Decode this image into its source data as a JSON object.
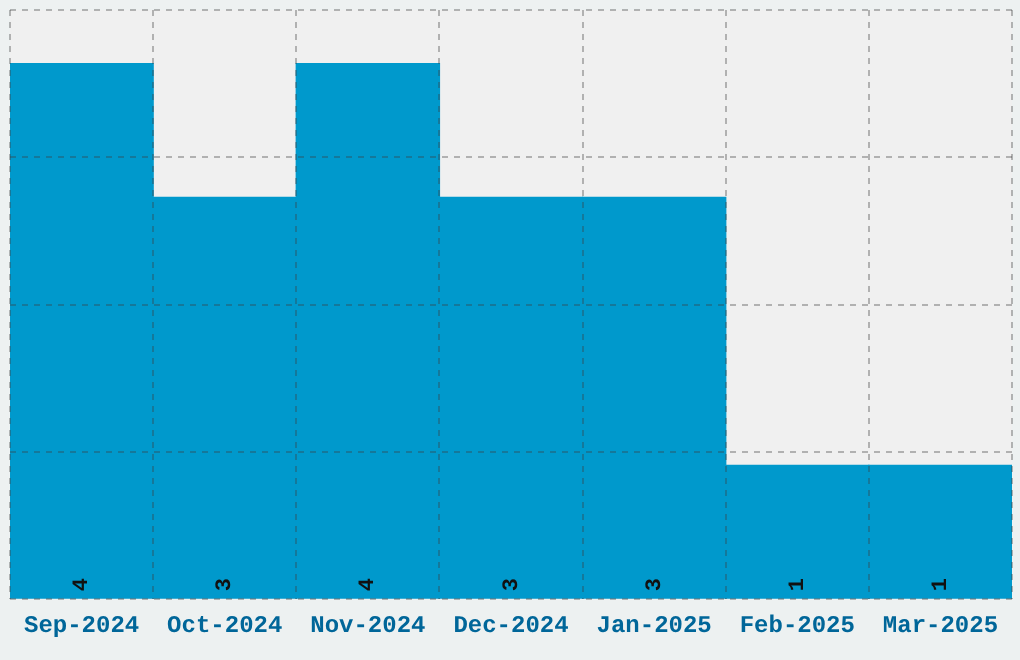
{
  "chart_data": {
    "type": "bar",
    "categories": [
      "Sep-2024",
      "Oct-2024",
      "Nov-2024",
      "Dec-2024",
      "Jan-2025",
      "Feb-2025",
      "Mar-2025"
    ],
    "values": [
      4,
      3,
      4,
      3,
      3,
      1,
      1
    ],
    "color": "#0099cc",
    "ylim": [
      0,
      4.4
    ],
    "yticks": [
      {
        "value": 0,
        "label": null
      },
      {
        "value": 1.1,
        "label": null
      },
      {
        "value": 2.2,
        "label": null
      },
      {
        "value": 3.3,
        "label": null
      },
      {
        "value": 4.4,
        "label": null
      }
    ],
    "tick_labels": "x",
    "grid": true,
    "data_labels": true
  }
}
